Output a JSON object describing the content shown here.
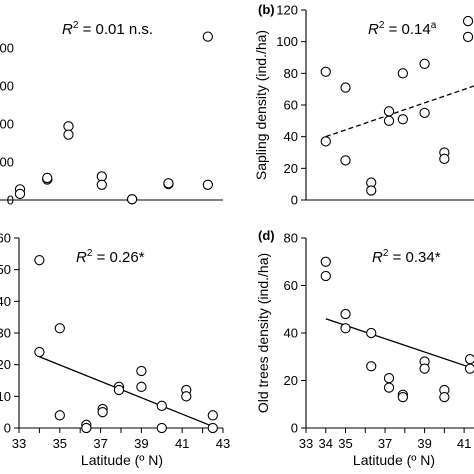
{
  "chart_data": [
    {
      "id": "a",
      "type": "scatter",
      "panel_label": "",
      "xlabel": "",
      "ylabel": "",
      "xlim": [
        33,
        43
      ],
      "ylim": [
        0,
        250
      ],
      "xticks": [],
      "yticks": [
        0,
        50,
        100,
        150,
        200
      ],
      "ytick_labels": [
        "0",
        "00",
        "00",
        "00",
        "00"
      ],
      "annotation": {
        "prefix": "R",
        "sup": "2",
        "suffix": " = 0.01 n.s."
      },
      "fit": null,
      "points": [
        {
          "x": 34,
          "y": 11
        },
        {
          "x": 34,
          "y": 13
        },
        {
          "x": 35,
          "y": 132
        },
        {
          "x": 35,
          "y": 108
        },
        {
          "x": 36.3,
          "y": 14
        },
        {
          "x": 36.3,
          "y": 8
        },
        {
          "x": 37.2,
          "y": 27
        },
        {
          "x": 37.2,
          "y": 29
        },
        {
          "x": 37.9,
          "y": 97
        },
        {
          "x": 37.9,
          "y": 86
        },
        {
          "x": 39,
          "y": 31
        },
        {
          "x": 39,
          "y": 20
        },
        {
          "x": 40,
          "y": 1
        },
        {
          "x": 40,
          "y": 1
        },
        {
          "x": 41.2,
          "y": 21
        },
        {
          "x": 41.2,
          "y": 22
        },
        {
          "x": 42.5,
          "y": 215
        },
        {
          "x": 42.5,
          "y": 20
        }
      ]
    },
    {
      "id": "b",
      "type": "scatter",
      "panel_label": "(b)",
      "xlabel": "",
      "ylabel": "Sapling density (ind./ha)",
      "xlim": [
        33,
        41.5
      ],
      "ylim": [
        0,
        120
      ],
      "xticks": [],
      "yticks": [
        0,
        20,
        40,
        60,
        80,
        100,
        120
      ],
      "ytick_labels": [
        "0",
        "20",
        "40",
        "60",
        "80",
        "100",
        "120"
      ],
      "annotation": {
        "prefix": "R",
        "sup": "2",
        "suffix": " = 0.14",
        "sup2": "a"
      },
      "fit": {
        "style": "dashed",
        "x": [
          34,
          41.5
        ],
        "y": [
          40,
          72
        ]
      },
      "points": [
        {
          "x": 34,
          "y": 81
        },
        {
          "x": 34,
          "y": 37
        },
        {
          "x": 35,
          "y": 71
        },
        {
          "x": 35,
          "y": 25
        },
        {
          "x": 36.3,
          "y": 11
        },
        {
          "x": 36.3,
          "y": 6
        },
        {
          "x": 37.2,
          "y": 56
        },
        {
          "x": 37.2,
          "y": 50
        },
        {
          "x": 37.9,
          "y": 80
        },
        {
          "x": 37.9,
          "y": 51
        },
        {
          "x": 39,
          "y": 86
        },
        {
          "x": 39,
          "y": 55
        },
        {
          "x": 40,
          "y": 30
        },
        {
          "x": 40,
          "y": 26
        },
        {
          "x": 41.2,
          "y": 113
        },
        {
          "x": 41.2,
          "y": 103
        }
      ]
    },
    {
      "id": "c",
      "type": "scatter",
      "panel_label": "",
      "xlabel": "Latitude (º N)",
      "ylabel": "",
      "xlim": [
        33,
        43
      ],
      "ylim": [
        0,
        60
      ],
      "xticks": [
        33,
        34,
        35,
        36,
        37,
        38,
        39,
        40,
        41,
        42,
        43
      ],
      "yticks": [
        0,
        10,
        20,
        30,
        40,
        50,
        60
      ],
      "ytick_labels": [
        "0",
        "10",
        "20",
        "30",
        "40",
        "50",
        "60"
      ],
      "annotation": {
        "prefix": "R",
        "sup": "2",
        "suffix": " = 0.26*"
      },
      "fit": {
        "style": "solid",
        "x": [
          34,
          42.5
        ],
        "y": [
          22.5,
          0.5
        ]
      },
      "points": [
        {
          "x": 34,
          "y": 53
        },
        {
          "x": 34,
          "y": 24
        },
        {
          "x": 35,
          "y": 31.5
        },
        {
          "x": 35,
          "y": 4
        },
        {
          "x": 36.3,
          "y": 1
        },
        {
          "x": 36.3,
          "y": 0
        },
        {
          "x": 37.1,
          "y": 6
        },
        {
          "x": 37.1,
          "y": 5
        },
        {
          "x": 37.9,
          "y": 13
        },
        {
          "x": 37.9,
          "y": 12
        },
        {
          "x": 39,
          "y": 18
        },
        {
          "x": 39,
          "y": 13
        },
        {
          "x": 40,
          "y": 7
        },
        {
          "x": 40,
          "y": 0
        },
        {
          "x": 41.2,
          "y": 12
        },
        {
          "x": 41.2,
          "y": 10
        },
        {
          "x": 42.5,
          "y": 4
        },
        {
          "x": 42.5,
          "y": 0
        }
      ]
    },
    {
      "id": "d",
      "type": "scatter",
      "panel_label": "(d)",
      "xlabel": "Latitude  (º N)",
      "ylabel": "Old trees density (ind./ha)",
      "xlim": [
        33,
        41.5
      ],
      "ylim": [
        0,
        80
      ],
      "xticks": [
        33,
        34,
        35,
        36,
        37,
        38,
        39,
        40,
        41
      ],
      "xtick_labels": [
        "33",
        "34",
        "35",
        "36",
        "37",
        "38",
        "39",
        "40",
        "41"
      ],
      "xtick_show": [
        true,
        true,
        true,
        false,
        true,
        false,
        true,
        false,
        true
      ],
      "yticks": [
        0,
        20,
        40,
        60,
        80
      ],
      "ytick_labels": [
        "0",
        "20",
        "40",
        "60",
        "80"
      ],
      "annotation": {
        "prefix": "R",
        "sup": "2",
        "suffix": " = 0.34*"
      },
      "fit": {
        "style": "solid",
        "x": [
          34,
          41.5
        ],
        "y": [
          46,
          25
        ]
      },
      "points": [
        {
          "x": 34,
          "y": 70
        },
        {
          "x": 34,
          "y": 64
        },
        {
          "x": 35,
          "y": 48
        },
        {
          "x": 35,
          "y": 42
        },
        {
          "x": 36.3,
          "y": 40
        },
        {
          "x": 36.3,
          "y": 26
        },
        {
          "x": 37.2,
          "y": 21
        },
        {
          "x": 37.2,
          "y": 17
        },
        {
          "x": 37.9,
          "y": 14
        },
        {
          "x": 37.9,
          "y": 13
        },
        {
          "x": 39,
          "y": 28
        },
        {
          "x": 39,
          "y": 25
        },
        {
          "x": 40,
          "y": 16
        },
        {
          "x": 40,
          "y": 13
        },
        {
          "x": 41.3,
          "y": 29
        },
        {
          "x": 41.3,
          "y": 25
        }
      ]
    }
  ]
}
